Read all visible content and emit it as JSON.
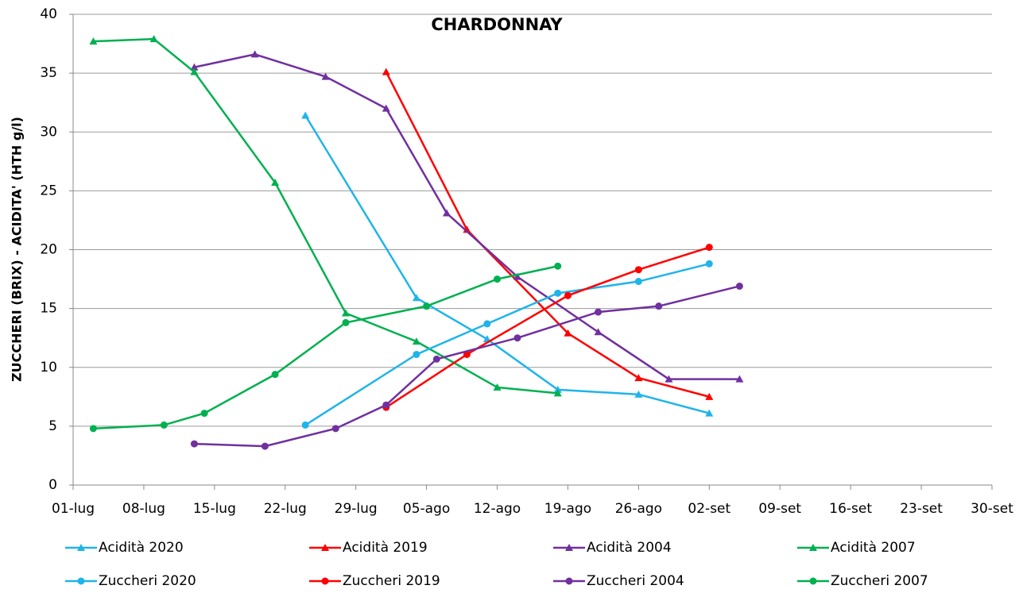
{
  "chart_data": {
    "type": "line",
    "title": "CHARDONNAY",
    "y_label": "ZUCCHERI (BRIX) - ACIDITA' (HTH g/l)",
    "xlim": [
      "01-lug",
      "30-set"
    ],
    "xticks": [
      "01-lug",
      "08-lug",
      "15-lug",
      "22-lug",
      "29-lug",
      "05-ago",
      "12-ago",
      "19-ago",
      "26-ago",
      "02-set",
      "09-set",
      "16-set",
      "23-set",
      "30-set"
    ],
    "ylim": [
      0,
      40
    ],
    "yticks": [
      0,
      5,
      10,
      15,
      20,
      25,
      30,
      35,
      40
    ],
    "grid": true,
    "legend": "bottom",
    "series": [
      {
        "name": "Acidità 2020",
        "color": "#1fb4ea",
        "marker": "triangle",
        "x": [
          "24-lug",
          "04-ago",
          "11-ago",
          "18-ago",
          "26-ago",
          "02-set"
        ],
        "values": [
          31.4,
          15.9,
          12.4,
          8.1,
          7.7,
          6.1
        ]
      },
      {
        "name": "Acidità 2019",
        "color": "#ff0000",
        "marker": "triangle",
        "x": [
          "01-ago",
          "09-ago",
          "19-ago",
          "26-ago",
          "02-set"
        ],
        "values": [
          35.1,
          21.7,
          12.9,
          9.1,
          7.5
        ]
      },
      {
        "name": "Acidità 2004",
        "color": "#7030a0",
        "marker": "triangle",
        "x": [
          "13-lug",
          "19-lug",
          "26-lug",
          "01-ago",
          "07-ago",
          "14-ago",
          "22-ago",
          "29-ago",
          "05-set"
        ],
        "values": [
          35.5,
          36.6,
          34.7,
          32.0,
          23.1,
          17.7,
          13.0,
          9.0,
          9.0
        ]
      },
      {
        "name": "Acidità 2007",
        "color": "#00b050",
        "marker": "triangle",
        "x": [
          "03-lug",
          "09-lug",
          "13-lug",
          "21-lug",
          "28-lug",
          "04-ago",
          "12-ago",
          "18-ago"
        ],
        "values": [
          37.7,
          37.9,
          35.1,
          25.7,
          14.6,
          12.2,
          8.3,
          7.8
        ]
      },
      {
        "name": "Zuccheri 2020",
        "color": "#1fb4ea",
        "marker": "circle",
        "x": [
          "24-lug",
          "04-ago",
          "11-ago",
          "18-ago",
          "26-ago",
          "02-set"
        ],
        "values": [
          5.1,
          11.1,
          13.7,
          16.3,
          17.3,
          18.8
        ]
      },
      {
        "name": "Zuccheri 2019",
        "color": "#ff0000",
        "marker": "circle",
        "x": [
          "01-ago",
          "09-ago",
          "19-ago",
          "26-ago",
          "02-set"
        ],
        "values": [
          6.6,
          11.1,
          16.1,
          18.3,
          20.2
        ]
      },
      {
        "name": "Zuccheri 2004",
        "color": "#7030a0",
        "marker": "circle",
        "x": [
          "13-lug",
          "20-lug",
          "27-lug",
          "01-ago",
          "06-ago",
          "14-ago",
          "22-ago",
          "28-ago",
          "05-set"
        ],
        "values": [
          3.5,
          3.3,
          4.8,
          6.8,
          10.7,
          12.5,
          14.7,
          15.2,
          16.9
        ]
      },
      {
        "name": "Zuccheri 2007",
        "color": "#00b050",
        "marker": "circle",
        "x": [
          "03-lug",
          "10-lug",
          "14-lug",
          "21-lug",
          "28-lug",
          "05-ago",
          "12-ago",
          "18-ago"
        ],
        "values": [
          4.8,
          5.1,
          6.1,
          9.4,
          13.8,
          15.2,
          17.5,
          18.6
        ]
      }
    ]
  }
}
